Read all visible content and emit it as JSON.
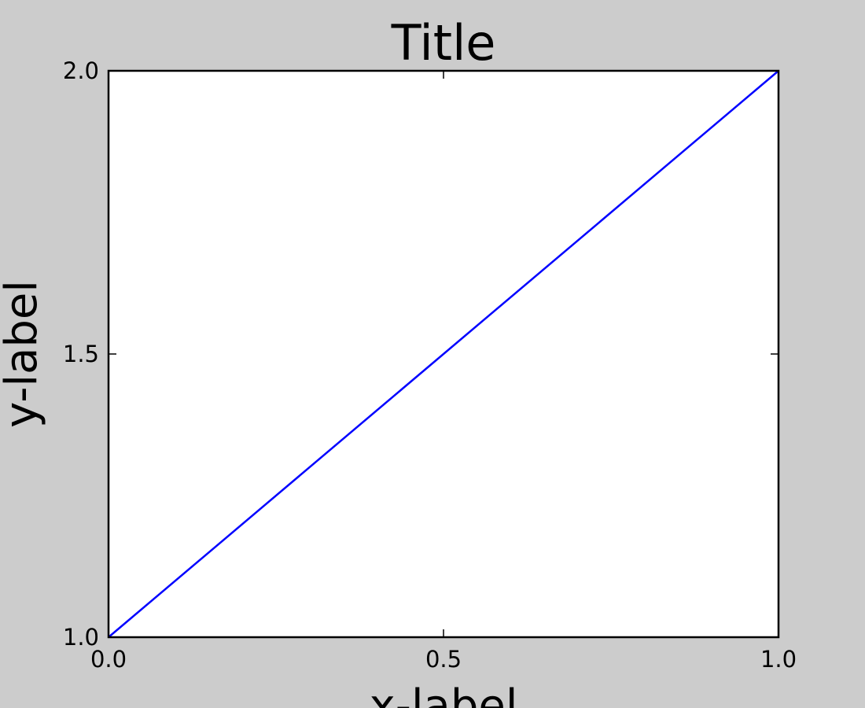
{
  "chart_data": {
    "type": "line",
    "title": "Title",
    "xlabel": "x-label",
    "ylabel": "y-label",
    "xlim": [
      0.0,
      1.0
    ],
    "ylim": [
      1.0,
      2.0
    ],
    "xticks": [
      "0.0",
      "0.5",
      "1.0"
    ],
    "yticks": [
      "1.0",
      "1.5",
      "2.0"
    ],
    "grid": false,
    "series": [
      {
        "color": "#0000ff",
        "x": [
          0.0,
          1.0
        ],
        "y": [
          1.0,
          2.0
        ]
      }
    ],
    "background": "#cccccc",
    "plot_background": "#ffffff"
  }
}
